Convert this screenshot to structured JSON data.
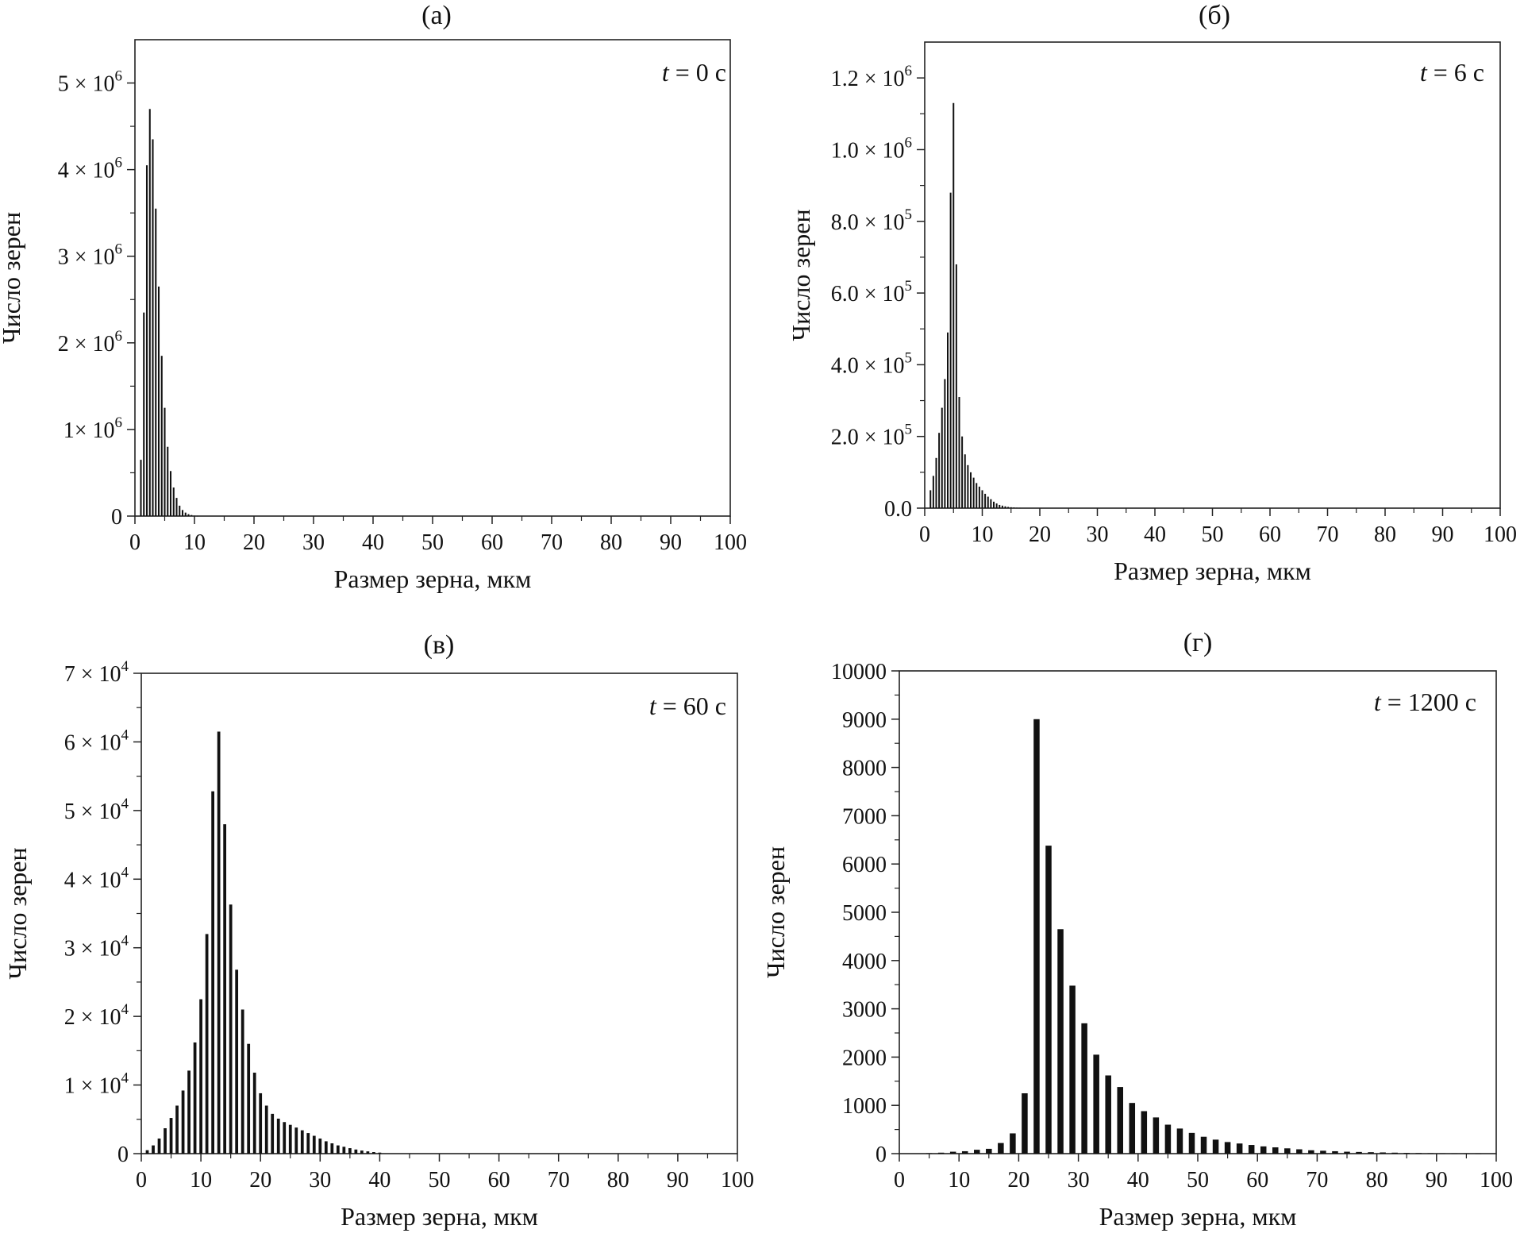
{
  "chart_data": [
    {
      "type": "bar",
      "panel_label": "(а)",
      "annotation": {
        "t": "t",
        "rest": " = 0 с"
      },
      "xlabel": "Размер зерна, мкм",
      "ylabel": "Число зерен",
      "xlim": [
        0,
        100
      ],
      "ylim": [
        0,
        5500000
      ],
      "xticks": [
        "0",
        "10",
        "20",
        "30",
        "40",
        "50",
        "60",
        "70",
        "80",
        "90",
        "100"
      ],
      "yticks": [
        {
          "value": 0,
          "base": "0",
          "exp": ""
        },
        {
          "value": 1000000,
          "base": "1× 10",
          "exp": "6"
        },
        {
          "value": 2000000,
          "base": "2 × 10",
          "exp": "6"
        },
        {
          "value": 3000000,
          "base": "3 × 10",
          "exp": "6"
        },
        {
          "value": 4000000,
          "base": "4 × 10",
          "exp": "6"
        },
        {
          "value": 5000000,
          "base": "5 × 10",
          "exp": "6"
        }
      ],
      "bin_width": 0.5,
      "bar_fill_fraction": 0.55,
      "x": [
        1.0,
        1.5,
        2.0,
        2.5,
        3.0,
        3.5,
        4.0,
        4.5,
        5.0,
        5.5,
        6.0,
        6.5,
        7.0,
        7.5,
        8.0,
        8.5,
        9.0,
        9.5,
        10.0,
        10.5
      ],
      "values": [
        650000,
        2350000,
        4050000,
        4700000,
        4350000,
        3550000,
        2650000,
        1850000,
        1250000,
        800000,
        520000,
        330000,
        210000,
        120000,
        70000,
        40000,
        22000,
        12000,
        5000,
        2000
      ]
    },
    {
      "type": "bar",
      "panel_label": "(б)",
      "annotation": {
        "t": "t",
        "rest": " = 6 с"
      },
      "xlabel": "Размер зерна, мкм",
      "ylabel": "Число зерен",
      "xlim": [
        0,
        100
      ],
      "ylim": [
        0,
        1300000
      ],
      "xticks": [
        "0",
        "10",
        "20",
        "30",
        "40",
        "50",
        "60",
        "70",
        "80",
        "90",
        "100"
      ],
      "yticks": [
        {
          "value": 0,
          "base": "0.0",
          "exp": ""
        },
        {
          "value": 200000,
          "base": "2.0 × 10",
          "exp": "5"
        },
        {
          "value": 400000,
          "base": "4.0 × 10",
          "exp": "5"
        },
        {
          "value": 600000,
          "base": "6.0 × 10",
          "exp": "5"
        },
        {
          "value": 800000,
          "base": "8.0 × 10",
          "exp": "5"
        },
        {
          "value": 1000000,
          "base": "1.0 × 10",
          "exp": "6"
        },
        {
          "value": 1200000,
          "base": "1.2 × 10",
          "exp": "6"
        }
      ],
      "bin_width": 0.5,
      "bar_fill_fraction": 0.55,
      "x": [
        1.0,
        1.5,
        2.0,
        2.5,
        3.0,
        3.5,
        4.0,
        4.5,
        5.0,
        5.5,
        6.0,
        6.5,
        7.0,
        7.5,
        8.0,
        8.5,
        9.0,
        9.5,
        10.0,
        10.5,
        11.0,
        11.5,
        12.0,
        12.5,
        13.0,
        13.5,
        14.0,
        14.5,
        15.0,
        15.5,
        16.0,
        16.5
      ],
      "values": [
        50000,
        90000,
        140000,
        210000,
        280000,
        360000,
        490000,
        880000,
        1130000,
        680000,
        310000,
        200000,
        150000,
        120000,
        100000,
        85000,
        70000,
        60000,
        50000,
        40000,
        32000,
        25000,
        18000,
        13000,
        9000,
        7000,
        5000,
        3500,
        2500,
        1800,
        1200,
        800
      ]
    },
    {
      "type": "bar",
      "panel_label": "(в)",
      "annotation": {
        "t": "t",
        "rest": " = 60 с"
      },
      "xlabel": "Размер зерна, мкм",
      "ylabel": "Число зерен",
      "xlim": [
        0,
        100
      ],
      "ylim": [
        0,
        70000
      ],
      "xticks": [
        "0",
        "10",
        "20",
        "30",
        "40",
        "50",
        "60",
        "70",
        "80",
        "90",
        "100"
      ],
      "yticks": [
        {
          "value": 0,
          "base": "0",
          "exp": ""
        },
        {
          "value": 10000,
          "base": "1 × 10",
          "exp": "4"
        },
        {
          "value": 20000,
          "base": "2 × 10",
          "exp": "4"
        },
        {
          "value": 30000,
          "base": "3 × 10",
          "exp": "4"
        },
        {
          "value": 40000,
          "base": "4 × 10",
          "exp": "4"
        },
        {
          "value": 50000,
          "base": "5 × 10",
          "exp": "4"
        },
        {
          "value": 60000,
          "base": "6 × 10",
          "exp": "4"
        },
        {
          "value": 70000,
          "base": "7 × 10",
          "exp": "4"
        }
      ],
      "bin_width": 1,
      "bar_fill_fraction": 0.5,
      "x": [
        1,
        2,
        3,
        4,
        5,
        6,
        7,
        8,
        9,
        10,
        11,
        12,
        13,
        14,
        15,
        16,
        17,
        18,
        19,
        20,
        21,
        22,
        23,
        24,
        25,
        26,
        27,
        28,
        29,
        30,
        31,
        32,
        33,
        34,
        35,
        36,
        37,
        38,
        39,
        40
      ],
      "values": [
        500,
        1200,
        2200,
        3700,
        5200,
        7000,
        9200,
        12100,
        16200,
        22500,
        32000,
        52800,
        61500,
        48000,
        36300,
        26800,
        21000,
        16000,
        11800,
        8800,
        7000,
        5800,
        5100,
        4600,
        4200,
        3800,
        3400,
        3000,
        2600,
        2200,
        1800,
        1500,
        1200,
        1000,
        800,
        600,
        450,
        330,
        230,
        150
      ]
    },
    {
      "type": "bar",
      "panel_label": "(г)",
      "annotation": {
        "t": "t",
        "rest": " = 1200 с"
      },
      "xlabel": "Размер зерна, мкм",
      "ylabel": "Число зерен",
      "xlim": [
        0,
        100
      ],
      "ylim": [
        0,
        10000
      ],
      "xticks": [
        "0",
        "10",
        "20",
        "30",
        "40",
        "50",
        "60",
        "70",
        "80",
        "90",
        "100"
      ],
      "yticks": [
        {
          "value": 0,
          "base": "0",
          "exp": ""
        },
        {
          "value": 1000,
          "base": "1000",
          "exp": ""
        },
        {
          "value": 2000,
          "base": "2000",
          "exp": ""
        },
        {
          "value": 3000,
          "base": "3000",
          "exp": ""
        },
        {
          "value": 4000,
          "base": "4000",
          "exp": ""
        },
        {
          "value": 5000,
          "base": "5000",
          "exp": ""
        },
        {
          "value": 6000,
          "base": "6000",
          "exp": ""
        },
        {
          "value": 7000,
          "base": "7000",
          "exp": ""
        },
        {
          "value": 8000,
          "base": "8000",
          "exp": ""
        },
        {
          "value": 9000,
          "base": "9000",
          "exp": ""
        },
        {
          "value": 10000,
          "base": "10000",
          "exp": ""
        }
      ],
      "bin_width": 2,
      "bar_fill_fraction": 0.5,
      "x": [
        5,
        7,
        9,
        11,
        13,
        15,
        17,
        19,
        21,
        23,
        25,
        27,
        29,
        31,
        33,
        35,
        37,
        39,
        41,
        43,
        45,
        47,
        49,
        51,
        53,
        55,
        57,
        59,
        61,
        63,
        65,
        67,
        69,
        71,
        73,
        75,
        77,
        79,
        81,
        83,
        85,
        87,
        89,
        91,
        93,
        95,
        97
      ],
      "values": [
        10,
        20,
        40,
        50,
        80,
        100,
        220,
        420,
        1250,
        9000,
        6380,
        4650,
        3480,
        2700,
        2050,
        1620,
        1380,
        1050,
        880,
        750,
        600,
        520,
        430,
        350,
        290,
        240,
        210,
        180,
        150,
        130,
        110,
        90,
        70,
        60,
        50,
        40,
        35,
        30,
        25,
        20,
        15,
        12,
        10,
        8,
        6,
        5,
        4
      ]
    }
  ]
}
